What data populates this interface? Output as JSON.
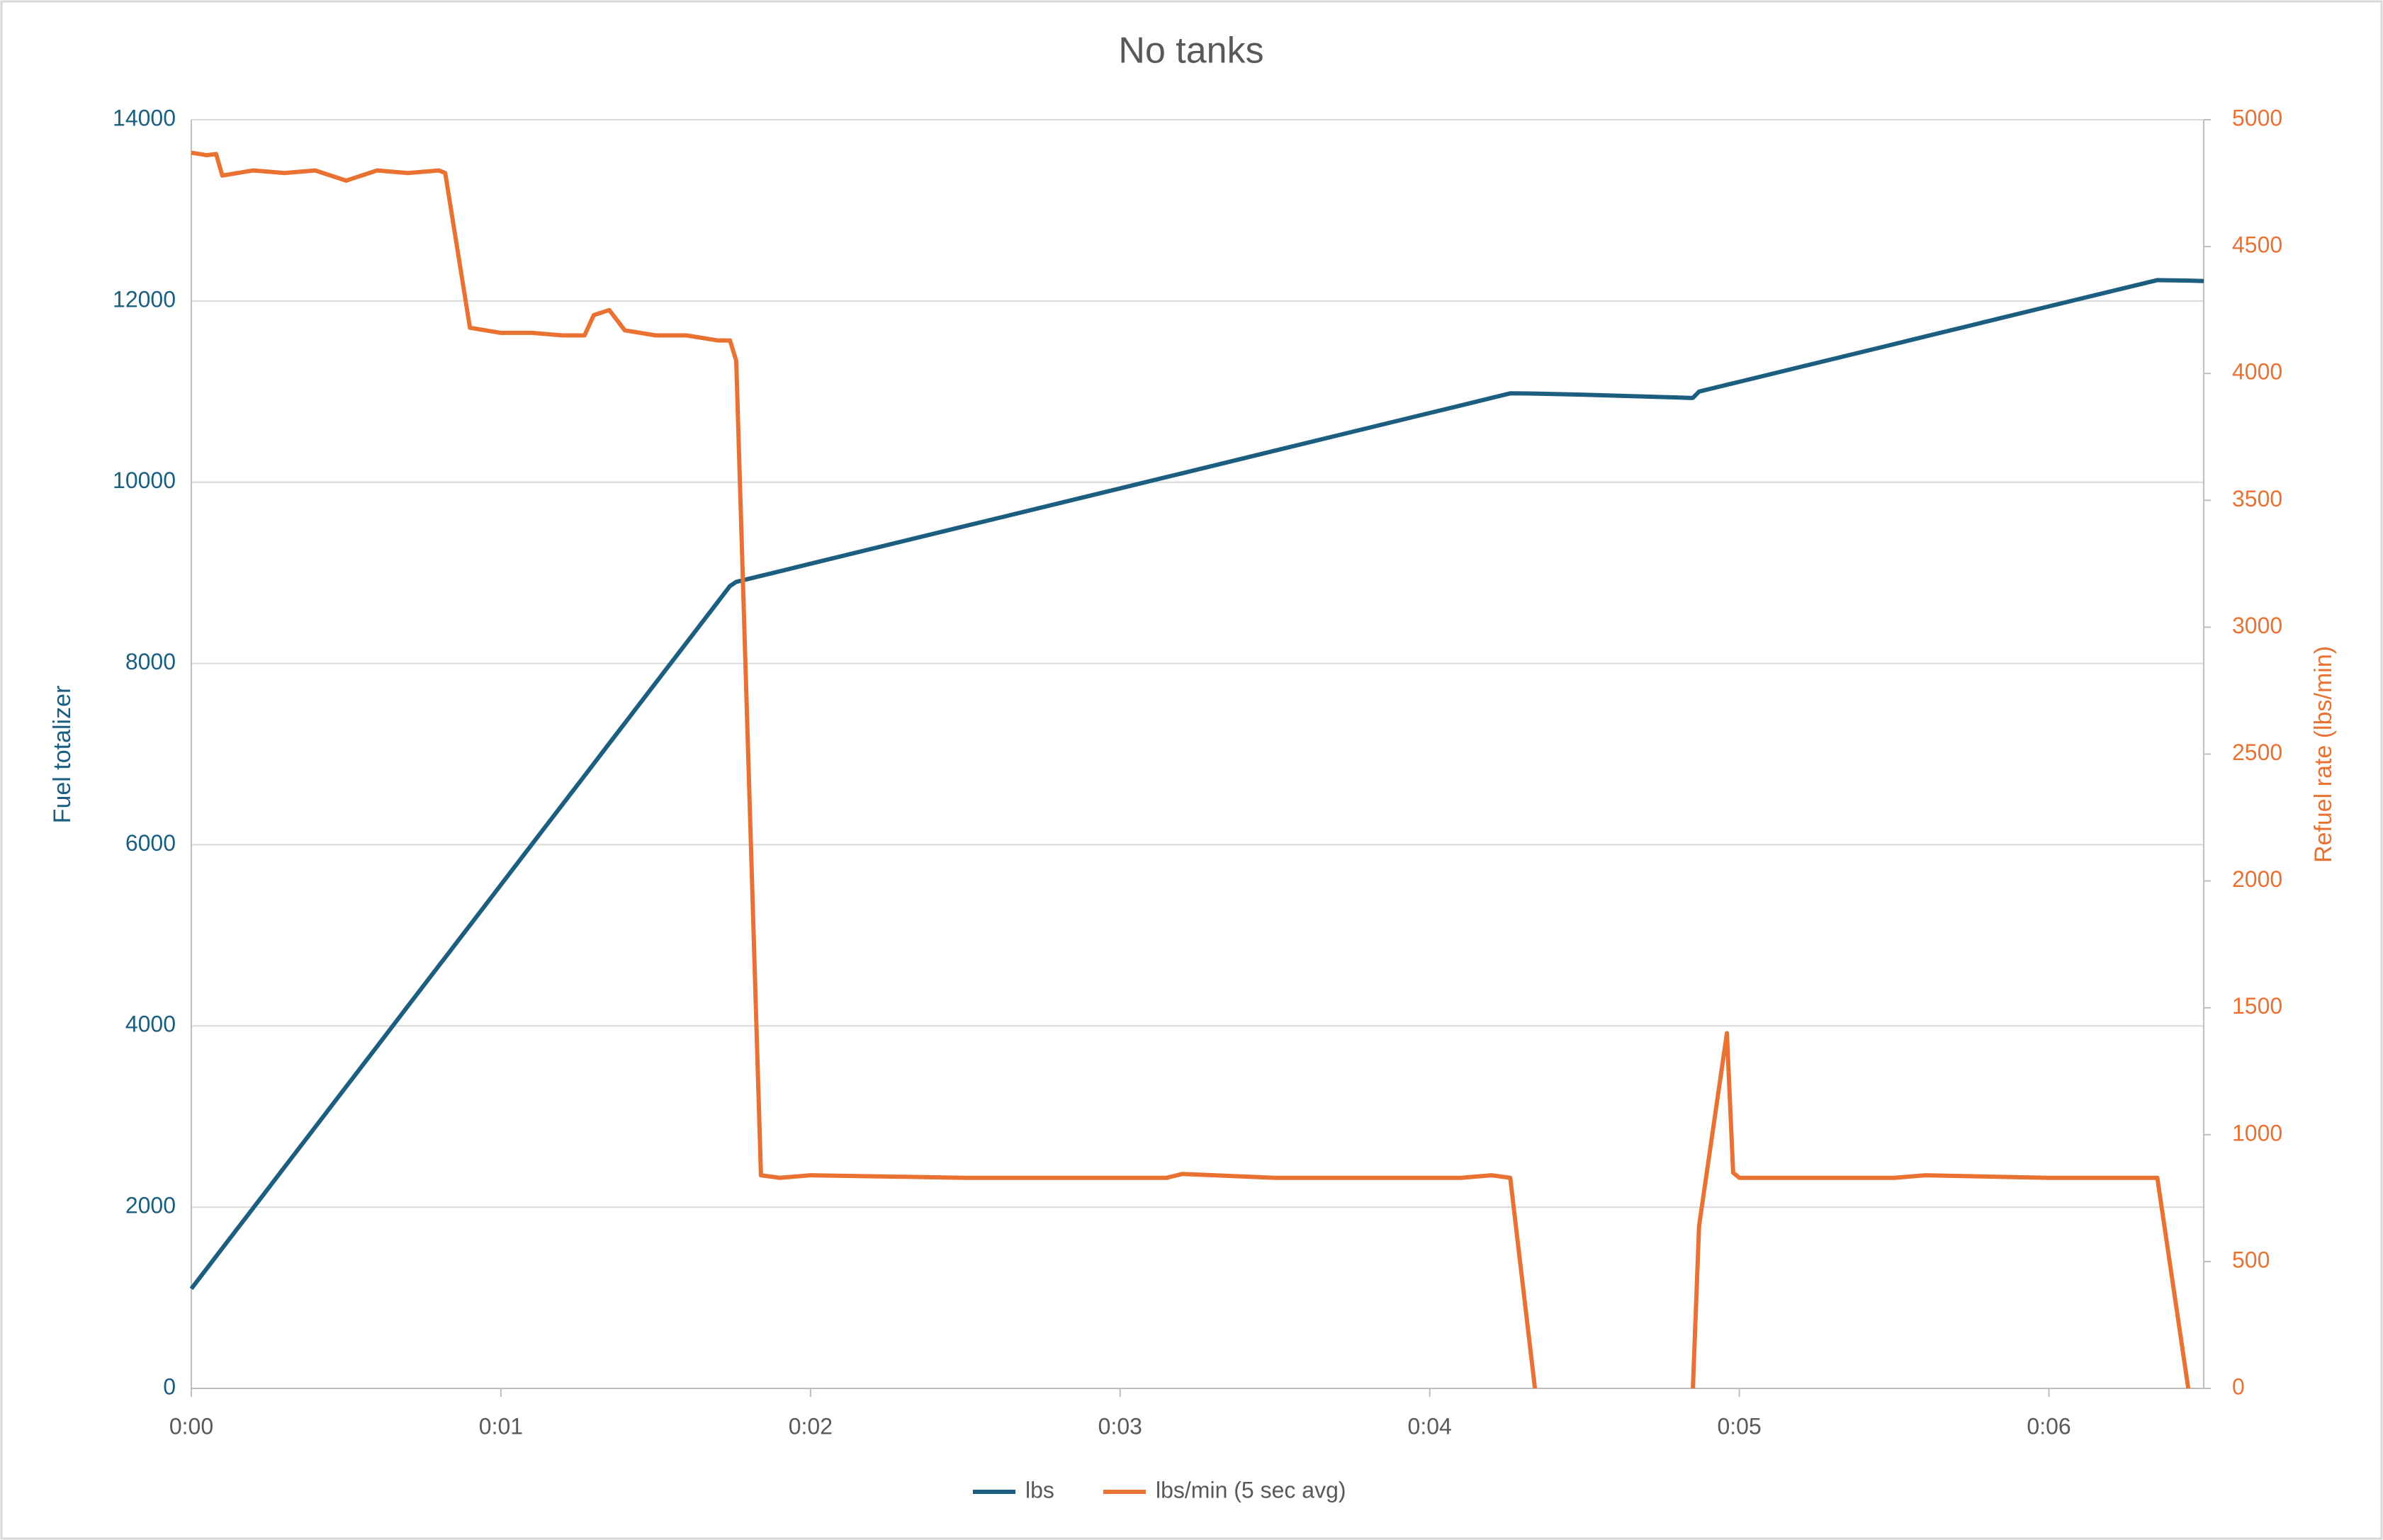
{
  "chart_data": {
    "type": "line",
    "title": "No tanks",
    "x_label": null,
    "y_label": "Fuel totalizer",
    "y2_label": "Refuel rate (lbs/min)",
    "x": [
      0,
      0.05,
      0.08,
      0.1,
      0.2,
      0.3,
      0.4,
      0.5,
      0.6,
      0.7,
      0.8,
      0.82,
      0.9,
      1.0,
      1.1,
      1.2,
      1.27,
      1.3,
      1.35,
      1.4,
      1.5,
      1.6,
      1.7,
      1.74,
      1.76,
      1.84,
      1.9,
      2.0,
      2.5,
      3.0,
      3.15,
      3.2,
      3.5,
      4.0,
      4.1,
      4.2,
      4.26,
      4.34,
      4.5,
      4.8,
      4.84,
      4.85,
      4.87,
      4.96,
      4.98,
      5.0,
      5.5,
      5.6,
      6.0,
      6.35,
      6.45,
      6.5
    ],
    "series": [
      {
        "name": "lbs",
        "color": "#1b5e80",
        "axis": "y",
        "values": [
          1100,
          1323,
          1457,
          1546,
          1991,
          2437,
          2883,
          3329,
          3774,
          4220,
          4666,
          4755,
          5111,
          5557,
          6003,
          6449,
          6760,
          6894,
          7117,
          7340,
          7786,
          8231,
          8677,
          8855,
          8900,
          8967,
          9016,
          9100,
          9516,
          9932,
          10057,
          10098,
          10348,
          10764,
          10847,
          10930,
          10980,
          10978,
          10965,
          10935,
          10930,
          10930,
          11000,
          11075,
          11091,
          11108,
          11524,
          11607,
          11940,
          12230,
          12225,
          12220
        ]
      },
      {
        "name": "lbs/min (5 sec avg)",
        "color": "#e97132",
        "axis": "y2",
        "values": [
          4870,
          4860,
          4865,
          4780,
          4800,
          4790,
          4800,
          4760,
          4800,
          4790,
          4800,
          4790,
          4180,
          4160,
          4160,
          4150,
          4150,
          4230,
          4250,
          4170,
          4150,
          4150,
          4130,
          4130,
          4050,
          840,
          830,
          840,
          830,
          830,
          830,
          845,
          830,
          830,
          830,
          840,
          830,
          0,
          null,
          null,
          null,
          0,
          640,
          1400,
          850,
          830,
          830,
          840,
          830,
          830,
          0,
          null
        ]
      }
    ],
    "xlim": [
      0,
      6.5
    ],
    "xticks": [
      {
        "value": 0,
        "label": "0:00"
      },
      {
        "value": 1,
        "label": "0:01"
      },
      {
        "value": 2,
        "label": "0:02"
      },
      {
        "value": 3,
        "label": "0:03"
      },
      {
        "value": 4,
        "label": "0:04"
      },
      {
        "value": 5,
        "label": "0:05"
      },
      {
        "value": 6,
        "label": "0:06"
      }
    ],
    "ylim": [
      0,
      14000
    ],
    "yticks": [
      0,
      2000,
      4000,
      6000,
      8000,
      10000,
      12000,
      14000
    ],
    "y2lim": [
      0,
      5000
    ],
    "y2ticks": [
      0,
      500,
      1000,
      1500,
      2000,
      2500,
      3000,
      3500,
      4000,
      4500,
      5000
    ],
    "grid": true,
    "legend": "bottom"
  }
}
